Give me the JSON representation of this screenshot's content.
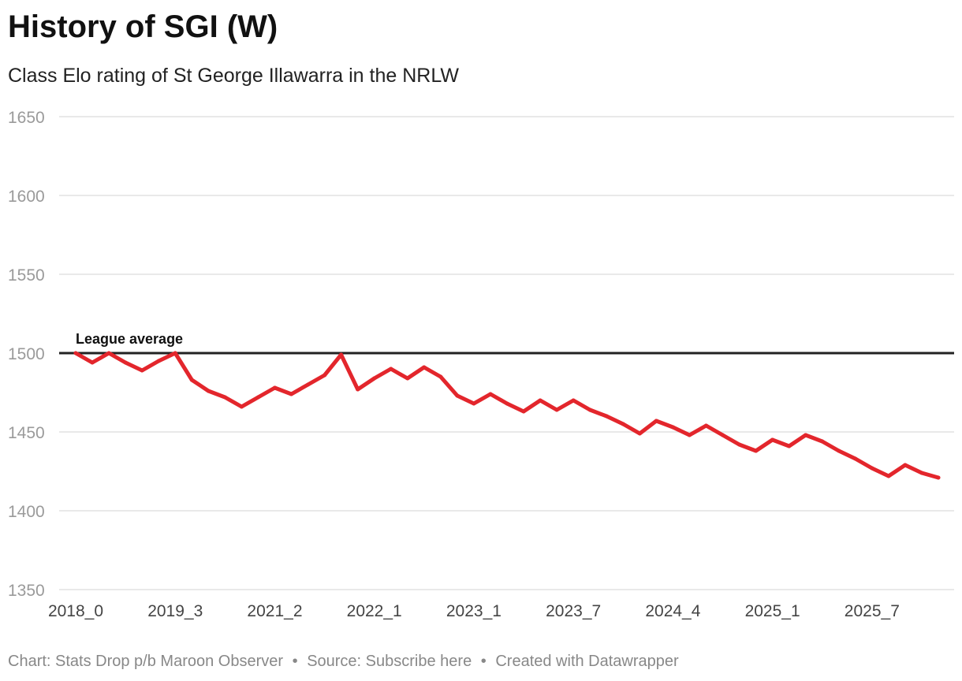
{
  "header": {
    "title": "History of SGI (W)",
    "subtitle": "Class Elo rating of St George Illawarra in the NRLW"
  },
  "footer": {
    "chart_credit": "Chart: Stats Drop p/b Maroon Observer",
    "source": "Source: Subscribe here",
    "created": "Created with Datawrapper",
    "separator": "•"
  },
  "colors": {
    "series": "#e3262c",
    "reference_line": "#222222",
    "grid": "#e2e2e2"
  },
  "chart_data": {
    "type": "line",
    "title": "History of SGI (W)",
    "subtitle": "Class Elo rating of St George Illawarra in the NRLW",
    "xlabel": "",
    "ylabel": "",
    "ylim": [
      1350,
      1650
    ],
    "y_ticks": [
      1350,
      1400,
      1450,
      1500,
      1550,
      1600,
      1650
    ],
    "x_tick_labels": [
      "2018_0",
      "2019_3",
      "2021_2",
      "2022_1",
      "2023_1",
      "2023_7",
      "2024_4",
      "2025_1",
      "2025_7"
    ],
    "x_tick_indices": [
      0,
      6,
      12,
      18,
      24,
      30,
      36,
      42,
      48
    ],
    "grid": true,
    "reference_line": {
      "value": 1500,
      "label": "League average"
    },
    "series": [
      {
        "name": "St George Illawarra",
        "values": [
          1500,
          1494,
          1500,
          1494,
          1489,
          1495,
          1500,
          1483,
          1476,
          1472,
          1466,
          1472,
          1478,
          1474,
          1480,
          1486,
          1499,
          1477,
          1484,
          1490,
          1484,
          1491,
          1485,
          1473,
          1468,
          1474,
          1468,
          1463,
          1470,
          1464,
          1470,
          1464,
          1460,
          1455,
          1449,
          1457,
          1453,
          1448,
          1454,
          1448,
          1442,
          1438,
          1445,
          1441,
          1448,
          1444,
          1438,
          1433,
          1427,
          1422,
          1429,
          1424,
          1421
        ]
      }
    ]
  }
}
